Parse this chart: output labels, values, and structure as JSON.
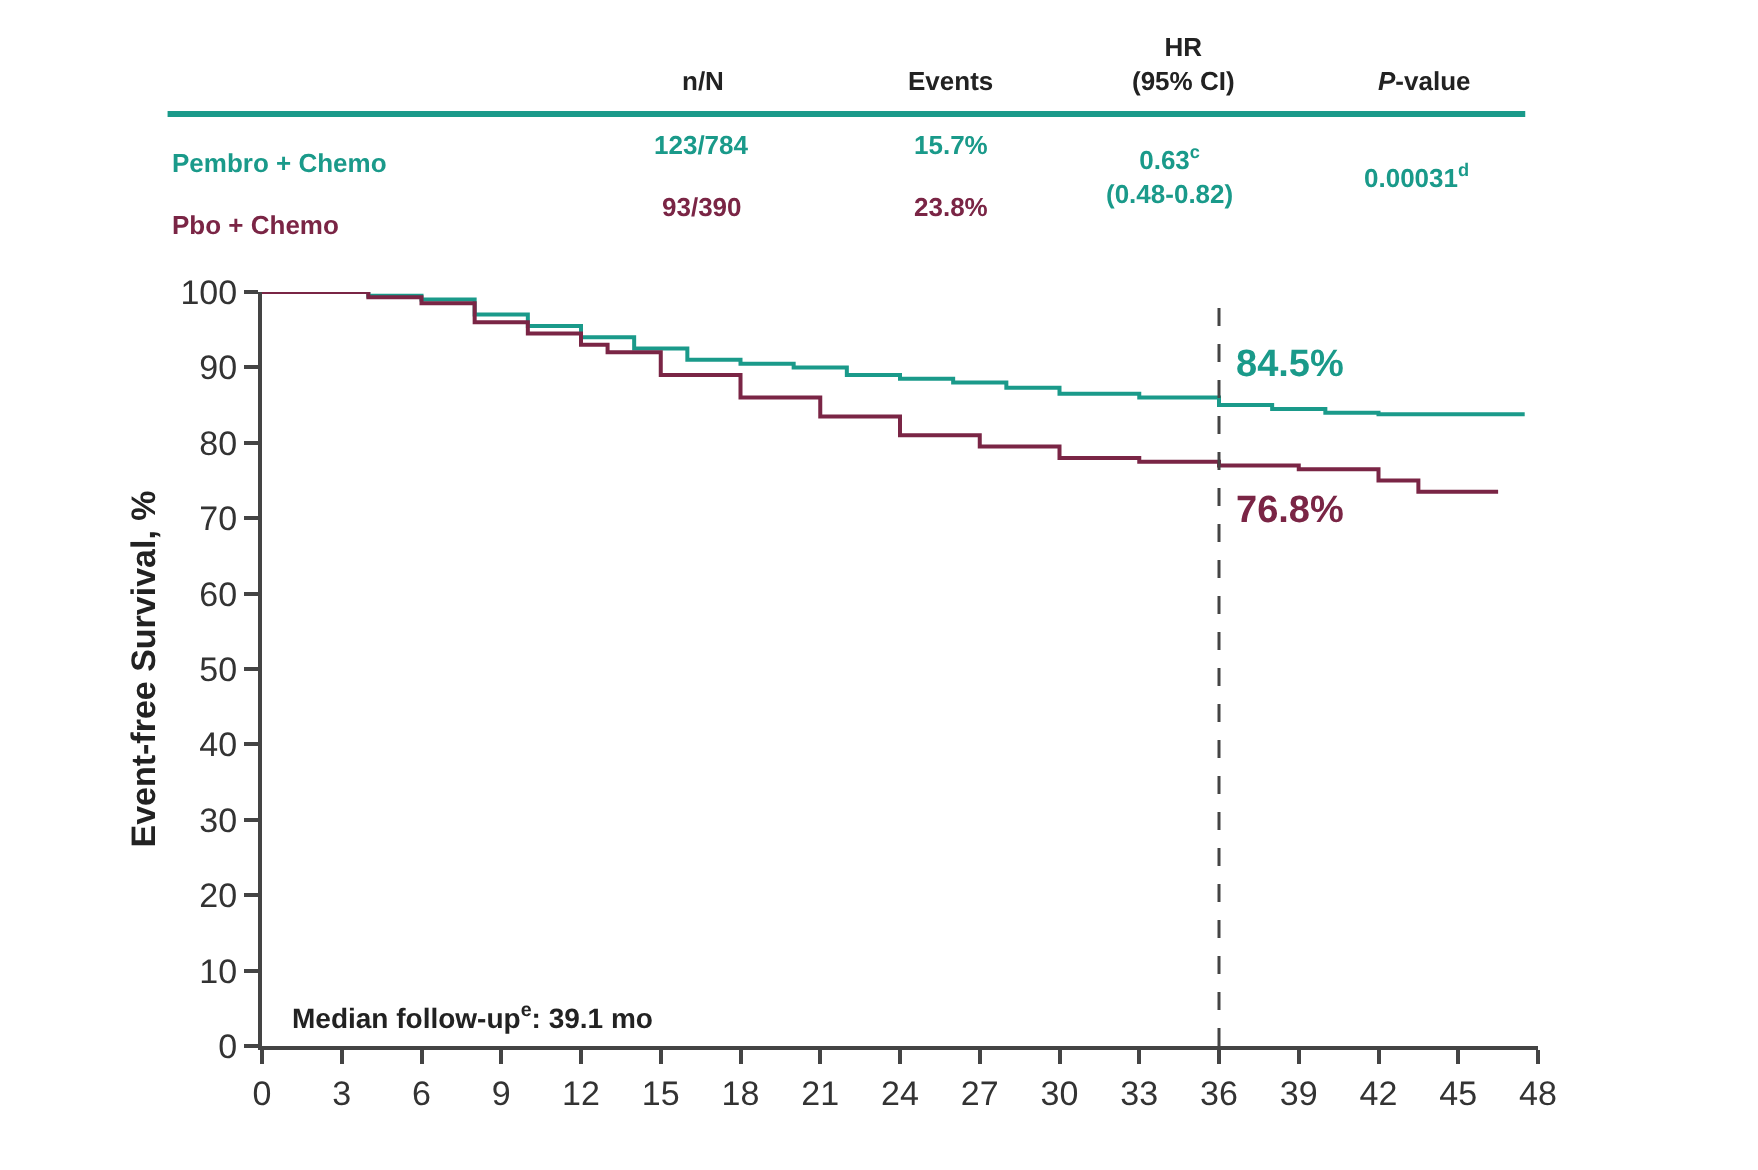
{
  "chart_data": {
    "type": "step",
    "ylabel": "Event-free Survival, %",
    "xlim": [
      0,
      48
    ],
    "xticks": [
      0,
      3,
      6,
      9,
      12,
      15,
      18,
      21,
      24,
      27,
      30,
      33,
      36,
      39,
      42,
      45,
      48
    ],
    "ylim": [
      0,
      100
    ],
    "yticks": [
      0,
      10,
      20,
      30,
      40,
      50,
      60,
      70,
      80,
      90,
      100
    ],
    "legend": false,
    "marker": "none",
    "line_style": "solid",
    "series": [
      {
        "name": "Pembro + Chemo",
        "color": "#1a9a8a",
        "x": [
          0,
          4,
          6,
          8,
          10,
          12,
          14,
          16,
          18,
          20,
          22,
          24,
          26,
          28,
          30,
          33,
          36,
          38,
          40,
          42,
          47.5
        ],
        "values": [
          100,
          99.5,
          99,
          97,
          95.5,
          94,
          92.5,
          91,
          90.5,
          90,
          89,
          88.5,
          88,
          87.3,
          86.5,
          86,
          85,
          84.5,
          84,
          83.8,
          83.8
        ]
      },
      {
        "name": "Pbo + Chemo",
        "color": "#7a2545",
        "x": [
          0,
          4,
          6,
          8,
          10,
          12,
          13,
          15,
          18,
          21,
          24,
          27,
          30,
          33,
          36,
          39,
          42,
          43.5,
          46.5
        ],
        "values": [
          100,
          99.3,
          98.5,
          96,
          94.5,
          93,
          92,
          89,
          86,
          83.5,
          81,
          79.5,
          78,
          77.5,
          77,
          76.5,
          75,
          73.5,
          73.5
        ]
      }
    ],
    "ref_lines": [
      {
        "axis": "x",
        "value": 36,
        "line_style": "dashed",
        "color": "#444444"
      }
    ],
    "annotations": [
      "n/N",
      "Events",
      "HR\n(95% CI)",
      "P-value",
      "123/784",
      "15.7%",
      "93/390",
      "23.8%",
      "0.63$^{c}$\n(0.48-0.82)",
      "0.00031$^{d}$",
      {
        "text": "84.5%",
        "x": 36,
        "y": 84.5
      },
      {
        "text": "76.8%",
        "x": 36,
        "y": 76.8
      },
      "Median follow-up$^{e}$: 39.1 mo"
    ]
  }
}
